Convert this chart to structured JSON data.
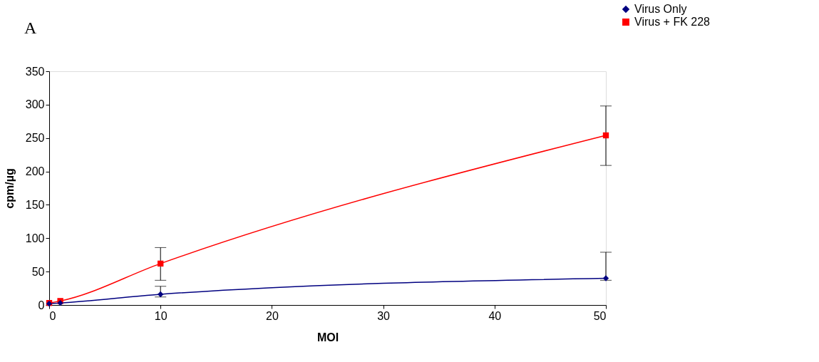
{
  "chart_data": {
    "type": "line",
    "xlabel": "MOI",
    "ylabel": "cpm/µg",
    "annotations": [
      "A"
    ],
    "x": [
      0,
      1,
      10,
      50
    ],
    "series": [
      {
        "name": "Virus Only",
        "color": "#000080",
        "marker": "diamond",
        "values": [
          2,
          3,
          16,
          40
        ],
        "errors": [
          null,
          null,
          [
            12,
            28
          ],
          [
            37,
            79
          ]
        ]
      },
      {
        "name": "Virus + FK 228",
        "color": "#ff0000",
        "marker": "square",
        "values": [
          3,
          6,
          62,
          254
        ],
        "errors": [
          null,
          null,
          [
            37,
            86
          ],
          [
            209,
            298
          ]
        ]
      }
    ],
    "xlim": [
      0,
      50
    ],
    "xticks": [
      0,
      10,
      20,
      30,
      40,
      50
    ],
    "ylim": [
      0,
      350
    ],
    "yticks": [
      0,
      50,
      100,
      150,
      200,
      250,
      300,
      350
    ],
    "grid": false,
    "legend": "top right"
  }
}
